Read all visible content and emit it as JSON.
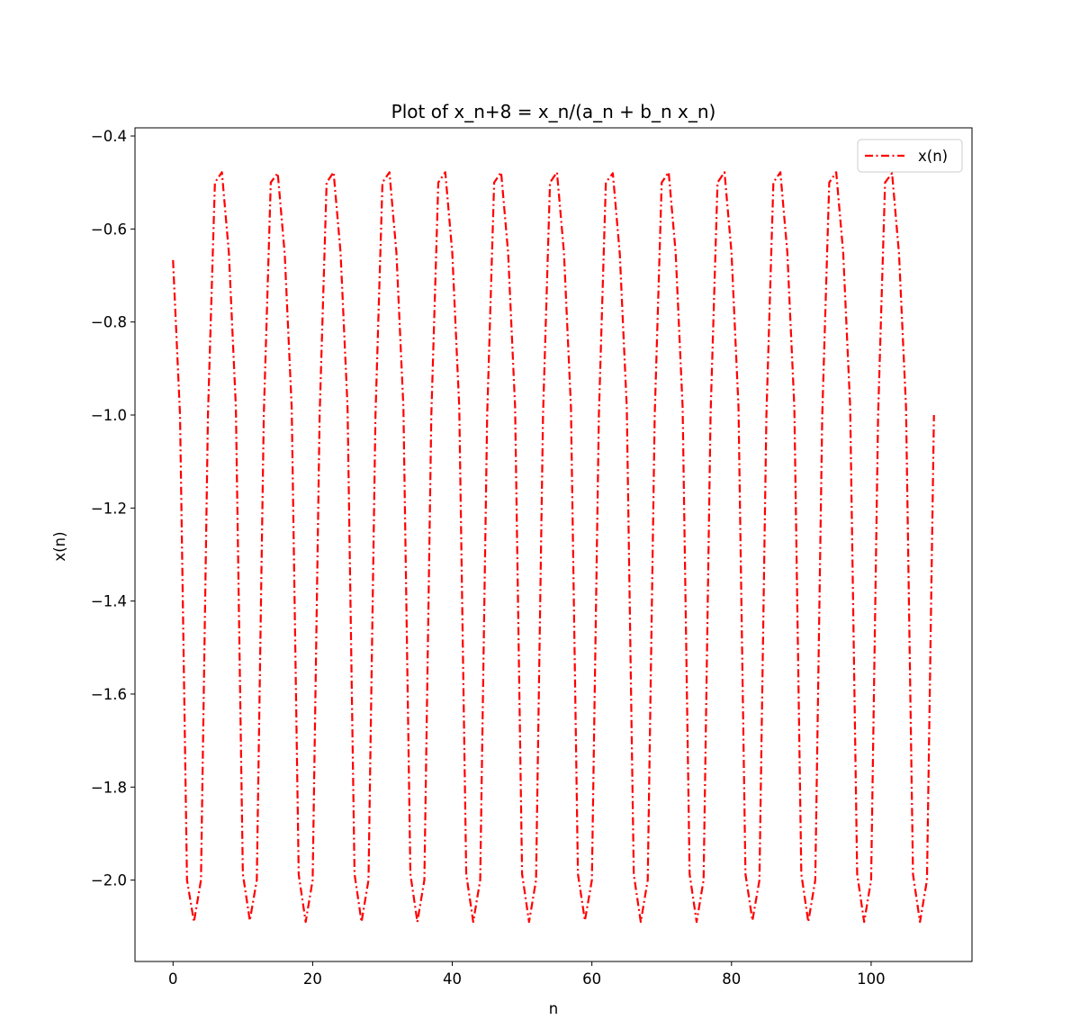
{
  "chart_data": {
    "type": "line",
    "title": "Plot of x_n+8 = x_n/(a_n + b_n x_n)",
    "xlabel": "n",
    "ylabel": "x(n)",
    "xlim": [
      -5.45,
      114.45
    ],
    "ylim": [
      -2.175,
      -0.3825
    ],
    "xticks": [
      0,
      20,
      40,
      60,
      80,
      100
    ],
    "yticks": [
      -2.0,
      -1.8,
      -1.6,
      -1.4,
      -1.2,
      -1.0,
      -0.8,
      -0.6,
      -0.4
    ],
    "grid": false,
    "legend_position": "upper right",
    "series": [
      {
        "name": "x(n)",
        "color": "#ff0000",
        "line_style": "dashdot",
        "x": [
          0,
          1,
          2,
          3,
          4,
          5,
          6,
          7,
          8,
          9,
          10,
          11,
          12,
          13,
          14,
          15,
          16,
          17,
          18,
          19,
          20,
          21,
          22,
          23,
          24,
          25,
          26,
          27,
          28,
          29,
          30,
          31,
          32,
          33,
          34,
          35,
          36,
          37,
          38,
          39,
          40,
          41,
          42,
          43,
          44,
          45,
          46,
          47,
          48,
          49,
          50,
          51,
          52,
          53,
          54,
          55,
          56,
          57,
          58,
          59,
          60,
          61,
          62,
          63,
          64,
          65,
          66,
          67,
          68,
          69,
          70,
          71,
          72,
          73,
          74,
          75,
          76,
          77,
          78,
          79,
          80,
          81,
          82,
          83,
          84,
          85,
          86,
          87,
          88,
          89,
          90,
          91,
          92,
          93,
          94,
          95,
          96,
          97,
          98,
          99,
          100,
          101,
          102,
          103,
          104,
          105,
          106,
          107,
          108,
          109
        ],
        "y": [
          -0.667,
          -1.0,
          -2.0,
          -2.09,
          -2.0,
          -1.0,
          -0.5,
          -0.478,
          -0.651,
          -0.983,
          -1.987,
          -2.087,
          -2.0,
          -1.0,
          -0.5,
          -0.48,
          -0.654,
          -0.984,
          -1.988,
          -2.09,
          -2.0,
          -1.0,
          -0.5,
          -0.478,
          -0.651,
          -0.983,
          -1.987,
          -2.09,
          -2.0,
          -1.0,
          -0.5,
          -0.478,
          -0.651,
          -0.983,
          -1.987,
          -2.09,
          -2.0,
          -1.0,
          -0.5,
          -0.478,
          -0.651,
          -0.983,
          -1.987,
          -2.09,
          -2.0,
          -1.0,
          -0.5,
          -0.478,
          -0.651,
          -0.983,
          -1.987,
          -2.09,
          -2.0,
          -1.0,
          -0.5,
          -0.478,
          -0.651,
          -0.983,
          -1.987,
          -2.087,
          -2.0,
          -1.0,
          -0.5,
          -0.48,
          -0.654,
          -0.984,
          -1.988,
          -2.09,
          -2.0,
          -1.0,
          -0.5,
          -0.478,
          -0.651,
          -0.983,
          -1.987,
          -2.09,
          -2.0,
          -1.0,
          -0.5,
          -0.478,
          -0.651,
          -0.983,
          -1.987,
          -2.087,
          -2.0,
          -1.0,
          -0.5,
          -0.478,
          -0.651,
          -0.983,
          -1.987,
          -2.09,
          -2.0,
          -1.0,
          -0.5,
          -0.478,
          -0.651,
          -0.983,
          -1.987,
          -2.09,
          -2.0,
          -1.0,
          -0.5,
          -0.48,
          -0.654,
          -0.984,
          -1.988,
          -2.09,
          -2.0,
          -1.0
        ]
      }
    ]
  }
}
